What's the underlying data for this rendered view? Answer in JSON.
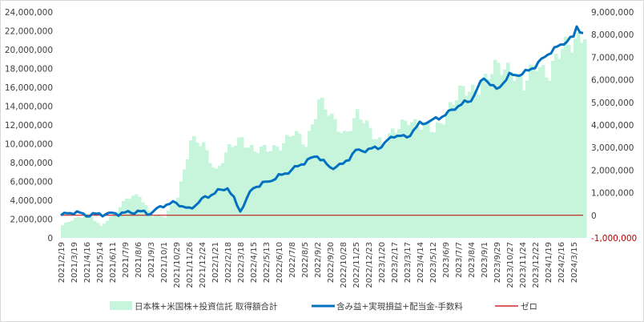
{
  "chart_data": {
    "type": "bar+line",
    "title": "",
    "y_left": {
      "min": 0,
      "max": 24000000,
      "step": 2000000,
      "ticks": [
        "0",
        "2,000,000",
        "4,000,000",
        "6,000,000",
        "8,000,000",
        "10,000,000",
        "12,000,000",
        "14,000,000",
        "16,000,000",
        "18,000,000",
        "20,000,000",
        "22,000,000",
        "24,000,000"
      ]
    },
    "y_right": {
      "min": -1000000,
      "max": 9000000,
      "step": 1000000,
      "ticks": [
        "-1,000,000",
        "0",
        "1,000,000",
        "2,000,000",
        "3,000,000",
        "4,000,000",
        "5,000,000",
        "6,000,000",
        "7,000,000",
        "8,000,000",
        "9,000,000"
      ],
      "negative_color": "#c00000"
    },
    "x_range": [
      "2021-02-19",
      "2024-04-05"
    ],
    "x_ticks": [
      "2021/2/19",
      "2021/3/19",
      "2021/4/16",
      "2021/5/14",
      "2021/6/11",
      "2021/7/9",
      "2021/8/6",
      "2021/9/3",
      "2021/10/1",
      "2021/10/29",
      "2021/11/26",
      "2021/12/24",
      "2022/1/21",
      "2022/2/18",
      "2022/3/18",
      "2022/4/15",
      "2022/5/13",
      "2022/6/10",
      "2022/7/8",
      "2022/8/5",
      "2022/9/2",
      "2022/9/30",
      "2022/10/28",
      "2022/11/25",
      "2022/12/23",
      "2023/1/20",
      "2023/2/17",
      "2023/3/17",
      "2023/4/14",
      "2023/5/12",
      "2023/6/9",
      "2023/7/7",
      "2023/8/4",
      "2023/9/1",
      "2023/9/29",
      "2023/10/27",
      "2023/11/24",
      "2023/12/22",
      "2024/1/19",
      "2024/2/16",
      "2024/3/15"
    ],
    "series": [
      {
        "name": "日本株+米国株+投資信託 取得額合計",
        "type": "bar",
        "axis": "left",
        "color": "#c6f5dc",
        "points": [
          [
            "2021-02-19",
            1300000
          ],
          [
            "2021-03-19",
            2100000
          ],
          [
            "2021-04-16",
            2500000
          ],
          [
            "2021-05-14",
            1200000
          ],
          [
            "2021-06-11",
            2600000
          ],
          [
            "2021-07-09",
            4100000
          ],
          [
            "2021-08-06",
            4500000
          ],
          [
            "2021-09-03",
            2400000
          ],
          [
            "2021-10-01",
            2200000
          ],
          [
            "2021-10-29",
            4500000
          ],
          [
            "2021-11-26",
            10200000
          ],
          [
            "2021-12-24",
            9800000
          ],
          [
            "2022-01-21",
            7200000
          ],
          [
            "2022-02-18",
            9300000
          ],
          [
            "2022-03-18",
            10700000
          ],
          [
            "2022-04-15",
            9200000
          ],
          [
            "2022-05-13",
            9300000
          ],
          [
            "2022-06-10",
            10000000
          ],
          [
            "2022-07-08",
            11000000
          ],
          [
            "2022-08-05",
            10000000
          ],
          [
            "2022-09-02",
            14700000
          ],
          [
            "2022-09-30",
            12500000
          ],
          [
            "2022-10-28",
            11200000
          ],
          [
            "2022-11-25",
            12900000
          ],
          [
            "2022-12-23",
            11500000
          ],
          [
            "2023-01-20",
            10200000
          ],
          [
            "2023-02-17",
            11200000
          ],
          [
            "2023-03-17",
            12900000
          ],
          [
            "2023-04-14",
            11800000
          ],
          [
            "2023-05-12",
            11300000
          ],
          [
            "2023-06-09",
            13600000
          ],
          [
            "2023-07-07",
            15200000
          ],
          [
            "2023-08-04",
            15900000
          ],
          [
            "2023-09-01",
            16800000
          ],
          [
            "2023-09-29",
            18000000
          ],
          [
            "2023-10-27",
            18400000
          ],
          [
            "2023-11-24",
            15800000
          ],
          [
            "2023-12-22",
            18800000
          ],
          [
            "2024-01-19",
            17500000
          ],
          [
            "2024-02-16",
            19800000
          ],
          [
            "2024-03-15",
            21500000
          ],
          [
            "2024-04-05",
            21700000
          ]
        ]
      },
      {
        "name": "含み益+実現損益+配当金-手数料",
        "type": "line",
        "axis": "right",
        "color": "#0070c0",
        "points": [
          [
            "2021-02-19",
            0
          ],
          [
            "2021-03-19",
            150000
          ],
          [
            "2021-04-16",
            10000
          ],
          [
            "2021-05-14",
            50000
          ],
          [
            "2021-06-11",
            70000
          ],
          [
            "2021-07-09",
            100000
          ],
          [
            "2021-08-06",
            170000
          ],
          [
            "2021-09-03",
            90000
          ],
          [
            "2021-10-01",
            450000
          ],
          [
            "2021-10-29",
            560000
          ],
          [
            "2021-11-26",
            250000
          ],
          [
            "2021-12-24",
            700000
          ],
          [
            "2022-01-21",
            1000000
          ],
          [
            "2022-02-18",
            1230000
          ],
          [
            "2022-03-18",
            200000
          ],
          [
            "2022-04-15",
            1230000
          ],
          [
            "2022-05-13",
            1450000
          ],
          [
            "2022-06-10",
            1720000
          ],
          [
            "2022-07-08",
            2000000
          ],
          [
            "2022-08-05",
            2350000
          ],
          [
            "2022-09-02",
            2650000
          ],
          [
            "2022-09-30",
            2100000
          ],
          [
            "2022-10-28",
            2250000
          ],
          [
            "2022-11-25",
            2850000
          ],
          [
            "2022-12-23",
            2900000
          ],
          [
            "2023-01-20",
            3050000
          ],
          [
            "2023-02-17",
            3550000
          ],
          [
            "2023-03-17",
            3450000
          ],
          [
            "2023-04-14",
            4050000
          ],
          [
            "2023-05-12",
            4200000
          ],
          [
            "2023-06-09",
            4450000
          ],
          [
            "2023-07-07",
            4850000
          ],
          [
            "2023-08-04",
            5100000
          ],
          [
            "2023-09-01",
            6100000
          ],
          [
            "2023-09-29",
            5550000
          ],
          [
            "2023-10-27",
            6200000
          ],
          [
            "2023-11-24",
            6250000
          ],
          [
            "2023-12-22",
            6600000
          ],
          [
            "2024-01-19",
            7150000
          ],
          [
            "2024-02-16",
            7550000
          ],
          [
            "2024-03-15",
            7900000
          ],
          [
            "2024-03-22",
            8350000
          ],
          [
            "2024-04-05",
            8050000
          ]
        ]
      },
      {
        "name": "ゼロ",
        "type": "line",
        "axis": "right",
        "color": "#c00000",
        "points": [
          [
            "2021-02-19",
            0
          ],
          [
            "2024-04-05",
            0
          ]
        ]
      }
    ],
    "legend_position": "bottom",
    "grid": false
  }
}
